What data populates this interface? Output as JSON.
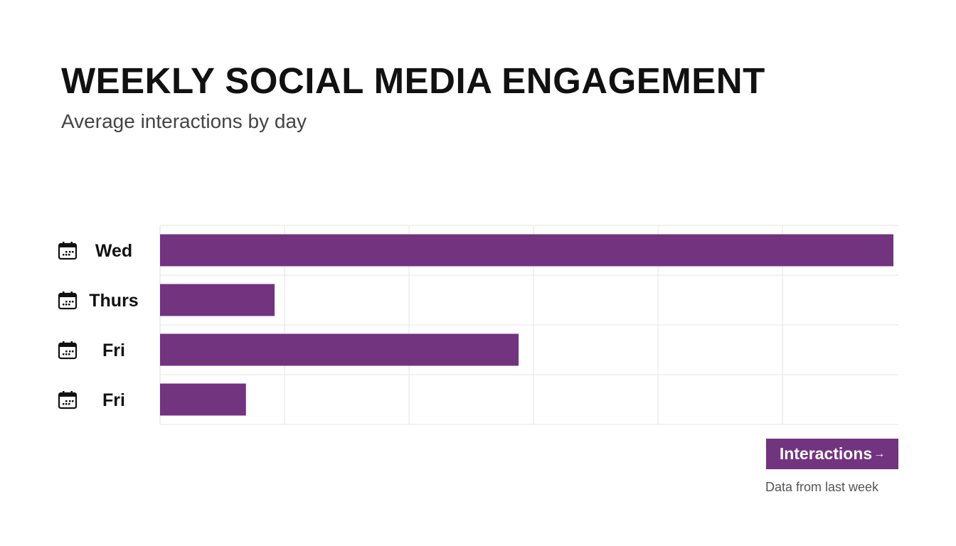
{
  "chart_data": {
    "type": "bar",
    "orientation": "horizontal",
    "title": "WEEKLY SOCIAL MEDIA ENGAGEMENT",
    "subtitle": "Average interactions by day",
    "categories": [
      "Wed",
      "Thurs",
      "Fri",
      "Fri"
    ],
    "category_icon": "calendar-icon",
    "values": [
      5.89,
      0.92,
      2.88,
      0.69
    ],
    "xlim": [
      0,
      5.93
    ],
    "grid": true,
    "bar_color": "#72337f",
    "legend": {
      "label": "Interactions",
      "arrow": "→",
      "placement": "bottom-right"
    },
    "note": "Data from last week"
  }
}
